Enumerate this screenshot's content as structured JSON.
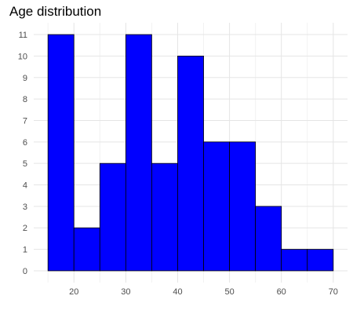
{
  "chart_data": {
    "type": "bar",
    "title": "Age distribution",
    "xlabel": "",
    "ylabel": "",
    "bins": [
      {
        "start": 15,
        "end": 20,
        "count": 11
      },
      {
        "start": 20,
        "end": 25,
        "count": 2
      },
      {
        "start": 25,
        "end": 30,
        "count": 5
      },
      {
        "start": 30,
        "end": 35,
        "count": 11
      },
      {
        "start": 35,
        "end": 40,
        "count": 5
      },
      {
        "start": 40,
        "end": 45,
        "count": 10
      },
      {
        "start": 45,
        "end": 50,
        "count": 6
      },
      {
        "start": 50,
        "end": 55,
        "count": 6
      },
      {
        "start": 55,
        "end": 60,
        "count": 3
      },
      {
        "start": 60,
        "end": 65,
        "count": 1
      },
      {
        "start": 65,
        "end": 70,
        "count": 1
      }
    ],
    "xlim": [
      12.25,
      72.75
    ],
    "ylim": [
      -0.55,
      11.55
    ],
    "x_ticks": [
      "20",
      "30",
      "40",
      "50",
      "60",
      "70"
    ],
    "y_ticks": [
      "0",
      "1",
      "2",
      "3",
      "4",
      "5",
      "6",
      "7",
      "8",
      "9",
      "10",
      "11"
    ],
    "bar_fill": "#0000ff",
    "bar_outline": "#000000",
    "grid": true,
    "grid_color": "#e5e5e5",
    "minor_grid_color": "#f2f2f2",
    "background": "#ffffff",
    "legend": "none"
  }
}
